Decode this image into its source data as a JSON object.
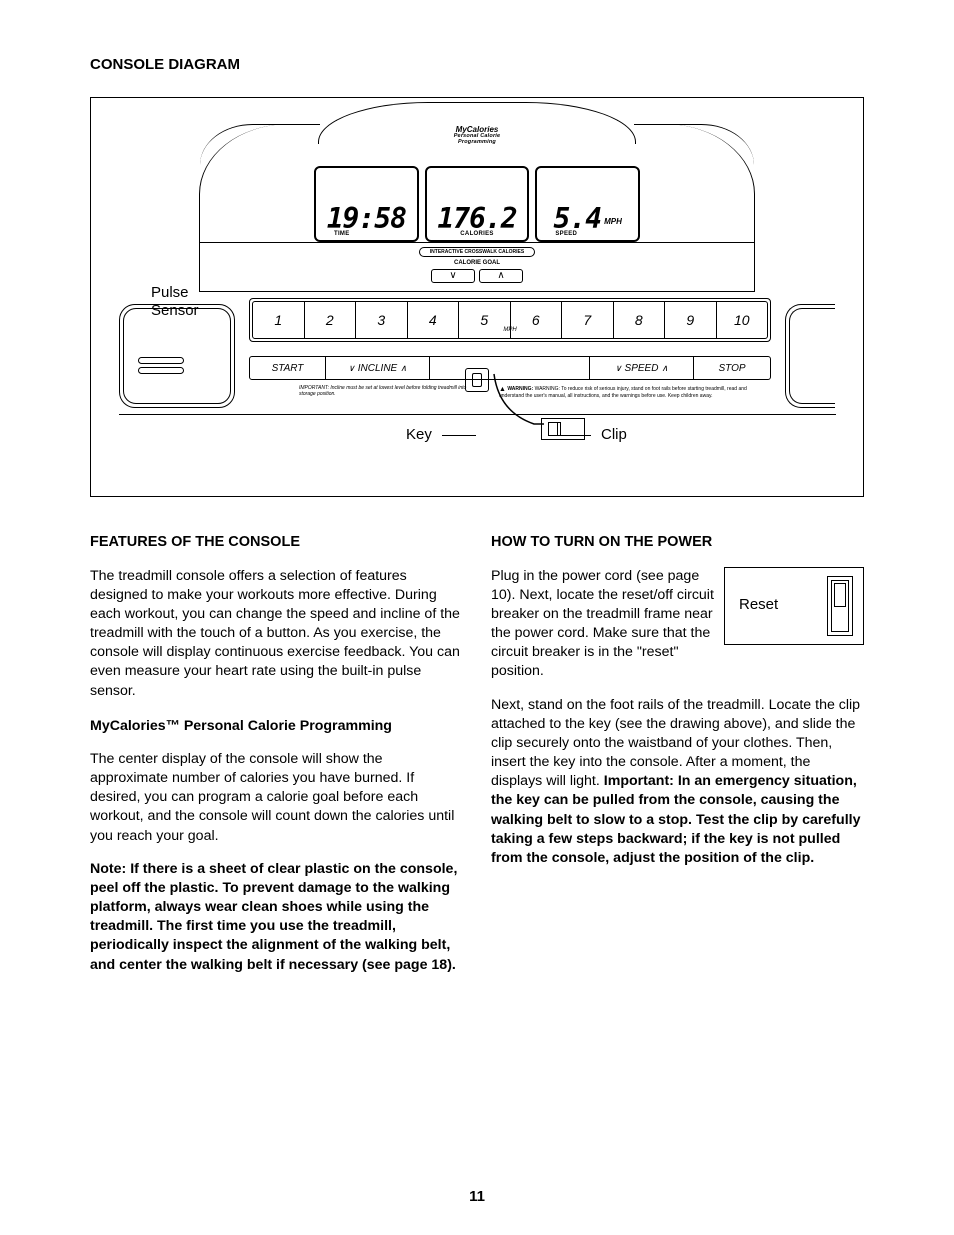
{
  "page_title": "CONSOLE DIAGRAM",
  "diagram": {
    "brand_line1": "MyCalories",
    "brand_line2": "Personal Calorie",
    "brand_line3": "Programming",
    "display_time": {
      "value": "19:58",
      "label": "TIME"
    },
    "display_cal": {
      "value": "176.2",
      "label": "CALORIES"
    },
    "display_speed": {
      "value": "5.4",
      "label": "SPEED",
      "unit": "MPH"
    },
    "interactive_label": "INTERACTIVE CROSSWALK CALORIES",
    "calorie_goal": "CALORIE GOAL",
    "speed_buttons": [
      "1",
      "2",
      "3",
      "4",
      "5",
      "6",
      "7",
      "8",
      "9",
      "10"
    ],
    "mph": "MPH",
    "start": "START",
    "incline": "INCLINE",
    "speed": "SPEED",
    "stop": "STOP",
    "pulse_label": "Pulse\nSensor",
    "warn_left": "IMPORTANT: Incline must be set at lowest level before folding treadmill into storage position.",
    "warn_right": "WARNING: To reduce risk of serious injury, stand on foot rails before starting treadmill, read and understand the user's manual, all instructions, and the warnings before use. Keep children away.",
    "callout_key": "Key",
    "callout_clip": "Clip"
  },
  "left": {
    "h1": "FEATURES OF THE CONSOLE",
    "p1": "The treadmill console offers a selection of features designed to make your workouts more effective. During each workout, you can change the speed and incline of the treadmill with the touch of a button. As you exercise, the console will display continuous exercise feedback. You can even measure your heart rate using the built-in pulse sensor.",
    "h2": "MyCalories™ Personal Calorie Programming",
    "p2": "The center display of the console will show the approximate number of calories you have burned. If desired, you can program a calorie goal before each workout, and the console will count down the calories until you reach your goal.",
    "p3": "Note: If there is a sheet of clear plastic on the console, peel off the plastic. To prevent damage to the walking platform, always wear clean shoes while using the treadmill. The first time you use the treadmill, periodically inspect the alignment of the walking belt, and center the walking belt if necessary (see page 18)."
  },
  "right": {
    "h1": "HOW TO TURN ON THE POWER",
    "reset": "Reset",
    "p1": "Plug in the power cord (see page 10). Next, locate the reset/off circuit breaker on the treadmill frame near the power cord. Make sure that the circuit breaker is in the \"reset\" position.",
    "p2a": "Next, stand on the foot rails of the treadmill. Locate the clip attached to the key (see the drawing above), and slide the clip securely onto the waistband of your clothes. Then, insert the key into the console. After a moment, the displays will light. ",
    "p2b": "Important: In an emergency situation, the key can be pulled from the console, causing the walking belt to slow to a stop. Test the clip by carefully taking a few steps backward; if the key is not pulled from the console, adjust the position of the clip."
  },
  "page_number": "11"
}
